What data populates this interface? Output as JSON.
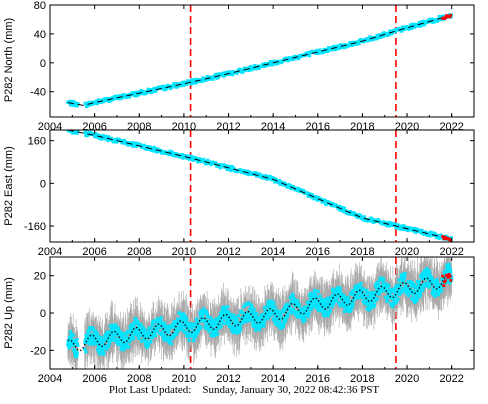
{
  "colors": {
    "data": "#00e5ff",
    "error_bars": "#a8a8a8",
    "model": "#000000",
    "offsets": "#ff0000",
    "recent": "#ff0000"
  },
  "chart_data": [
    {
      "type": "scatter",
      "ylabel": "P282 North (mm)",
      "xlim": [
        2004,
        2023
      ],
      "ylim": [
        -75,
        80
      ],
      "xticks": [
        2004,
        2006,
        2008,
        2010,
        2012,
        2014,
        2016,
        2018,
        2020,
        2022
      ],
      "yticks": [
        80,
        40,
        0,
        -40
      ],
      "offsets_x": [
        2010.3,
        2019.5
      ],
      "series": {
        "x": [
          2004.8,
          2005.5,
          2006.0,
          2008.0,
          2010.3,
          2012.0,
          2014.0,
          2016.0,
          2018.0,
          2019.5,
          2022.0
        ],
        "y": [
          -55,
          -59,
          -55,
          -42,
          -27,
          -15,
          0,
          15,
          30,
          44,
          66
        ]
      }
    },
    {
      "type": "scatter",
      "ylabel": "P282 East (mm)",
      "xlim": [
        2004,
        2023
      ],
      "ylim": [
        -220,
        200
      ],
      "xticks": [
        2004,
        2006,
        2008,
        2010,
        2012,
        2014,
        2016,
        2018,
        2020,
        2022
      ],
      "yticks": [
        160,
        0,
        -160
      ],
      "offsets_x": [
        2010.3,
        2019.5
      ],
      "series": {
        "x": [
          2004.8,
          2006.0,
          2010.3,
          2014.0,
          2018.0,
          2019.5,
          2022.0
        ],
        "y": [
          200,
          180,
          95,
          15,
          -130,
          -160,
          -210
        ]
      }
    },
    {
      "type": "scatter",
      "ylabel": "P282 Up (mm)",
      "xlim": [
        2004,
        2023
      ],
      "ylim": [
        -30,
        30
      ],
      "xticks": [
        2004,
        2006,
        2008,
        2010,
        2012,
        2014,
        2016,
        2018,
        2020,
        2022
      ],
      "yticks": [
        20,
        0,
        -20
      ],
      "offsets_x": [
        2010.3,
        2019.5
      ],
      "series": {
        "x": [
          2004.8,
          2006.0,
          2008.0,
          2010.3,
          2012.0,
          2014.0,
          2016.0,
          2018.0,
          2019.5,
          2022.0
        ],
        "y": [
          -18,
          -15,
          -11,
          -7,
          -4,
          -1,
          5,
          9,
          12,
          18
        ]
      }
    }
  ],
  "footer": {
    "label": "Plot Last Updated:",
    "timestamp": "Sunday, January 30, 2022 08:42:36 PST"
  }
}
